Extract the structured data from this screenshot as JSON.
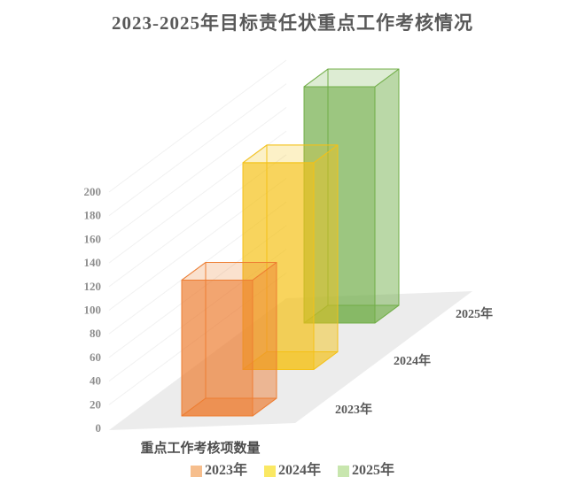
{
  "title": "2023-2025年目标责任状重点工作考核情况",
  "chart_data": {
    "type": "bar",
    "variant": "3d-column-depth",
    "title": "2023-2025年目标责任状重点工作考核情况",
    "categories": [
      "重点工作考核项数量"
    ],
    "series": [
      {
        "name": "2023年",
        "values": [
          115
        ],
        "color": "#ED7D31",
        "legend_swatch": "#F6BE8D"
      },
      {
        "name": "2024年",
        "values": [
          175
        ],
        "color": "#F4C116",
        "legend_swatch": "#FAE863"
      },
      {
        "name": "2025年",
        "values": [
          200
        ],
        "color": "#70AD47",
        "legend_swatch": "#C8E6AE"
      }
    ],
    "xlabel": "重点工作考核项数量",
    "ylabel": "",
    "ylim": [
      0,
      200
    ],
    "ytick_step": 20,
    "yticks": [
      0,
      20,
      40,
      60,
      80,
      100,
      120,
      140,
      160,
      180,
      200
    ],
    "depth_axis_labels": [
      "2023年",
      "2024年",
      "2025年"
    ],
    "legend": [
      "2023年",
      "2024年",
      "2025年"
    ],
    "legend_position": "bottom",
    "grid": true
  },
  "colors": {
    "title_text": "#595959",
    "axis_tick_text": "#8f8f8f",
    "depth_label_text": "#595959",
    "xlabel_text": "#4d4d4d",
    "legend_text": "#595959",
    "floor": "#ECECEC",
    "gridline": "#F1F1F1",
    "background": "#FFFFFF"
  }
}
